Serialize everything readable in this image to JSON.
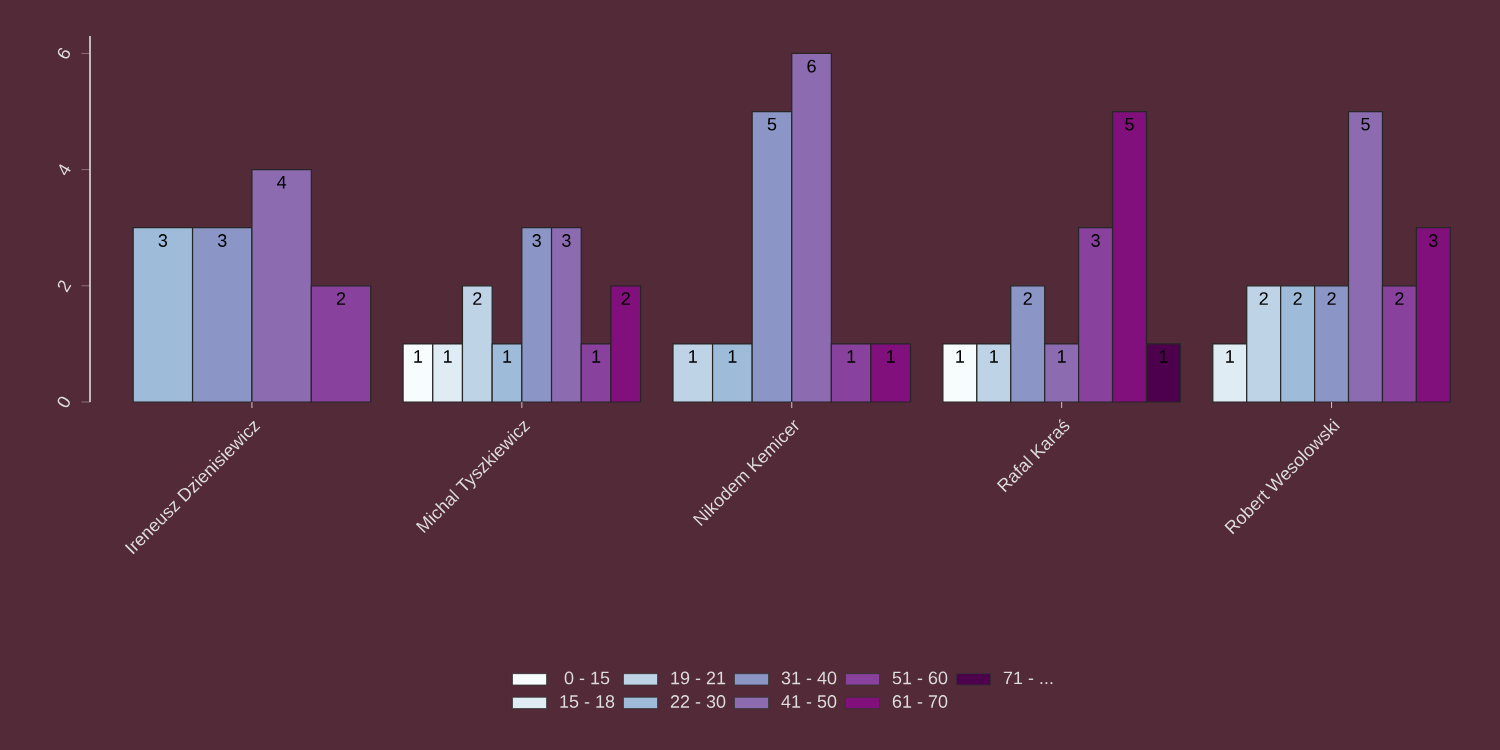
{
  "chart_data": {
    "type": "bar",
    "categories": [
      "Ireneusz Dzienisiewicz",
      "Michal Tyszkiewicz",
      "Nikodem Kemicer",
      "Rafal Karaś",
      "Robert Wesolowski"
    ],
    "series": [
      {
        "name": "0 - 15",
        "color": "#f7fcfd",
        "values": [
          null,
          1,
          null,
          1,
          null
        ]
      },
      {
        "name": "15 - 18",
        "color": "#e0ecf4",
        "values": [
          null,
          1,
          null,
          null,
          1
        ]
      },
      {
        "name": "19 - 21",
        "color": "#bfd3e6",
        "values": [
          null,
          2,
          1,
          1,
          2
        ]
      },
      {
        "name": "22 - 30",
        "color": "#9ebcda",
        "values": [
          3,
          1,
          1,
          null,
          2
        ]
      },
      {
        "name": "31 - 40",
        "color": "#8c96c6",
        "values": [
          3,
          3,
          5,
          2,
          2
        ]
      },
      {
        "name": "41 - 50",
        "color": "#8c6bb1",
        "values": [
          4,
          3,
          6,
          1,
          5
        ]
      },
      {
        "name": "51 - 60",
        "color": "#88419d",
        "values": [
          2,
          1,
          1,
          3,
          2
        ]
      },
      {
        "name": "61 - 70",
        "color": "#810f7c",
        "values": [
          null,
          2,
          1,
          5,
          3
        ]
      },
      {
        "name": "71 - ...",
        "color": "#4d004b",
        "values": [
          null,
          null,
          null,
          1,
          null
        ]
      }
    ],
    "ylim": [
      0,
      6.3
    ],
    "yticks": [
      0,
      2,
      4,
      6
    ],
    "data_labels": true,
    "legend": "bottom"
  }
}
